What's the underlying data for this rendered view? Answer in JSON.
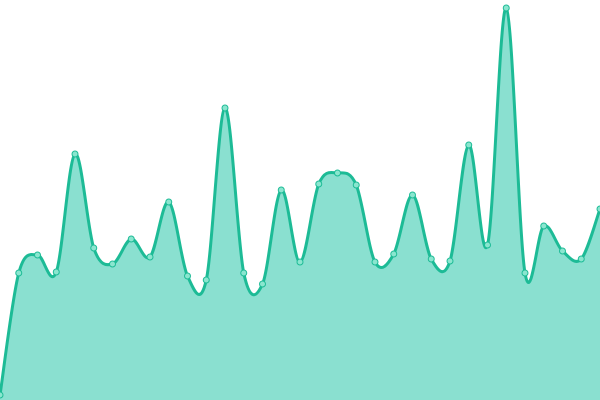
{
  "chart_data": {
    "type": "area",
    "title": "",
    "xlabel": "",
    "ylabel": "",
    "x": [
      0,
      1,
      2,
      3,
      4,
      5,
      6,
      7,
      8,
      9,
      10,
      11,
      12,
      13,
      14,
      15,
      16,
      17,
      18,
      19,
      20,
      21,
      22,
      23,
      24,
      25,
      26,
      27,
      28,
      29,
      30,
      31,
      32
    ],
    "series": [
      {
        "values": [
          5,
          127,
          145,
          128,
          246,
          152,
          136,
          161,
          143,
          198,
          124,
          120,
          292,
          127,
          116,
          210,
          138,
          216,
          227,
          215,
          138,
          146,
          205,
          141,
          139,
          255,
          155,
          392,
          127,
          174,
          149,
          141,
          191
        ]
      }
    ],
    "ylim": [
      0,
      400
    ],
    "grid": false,
    "axes_visible": false,
    "smooth": true,
    "colors": {
      "line": "#1dbb96",
      "fill": "#8ae0d0",
      "point_fill": "#8ae6cf"
    }
  }
}
